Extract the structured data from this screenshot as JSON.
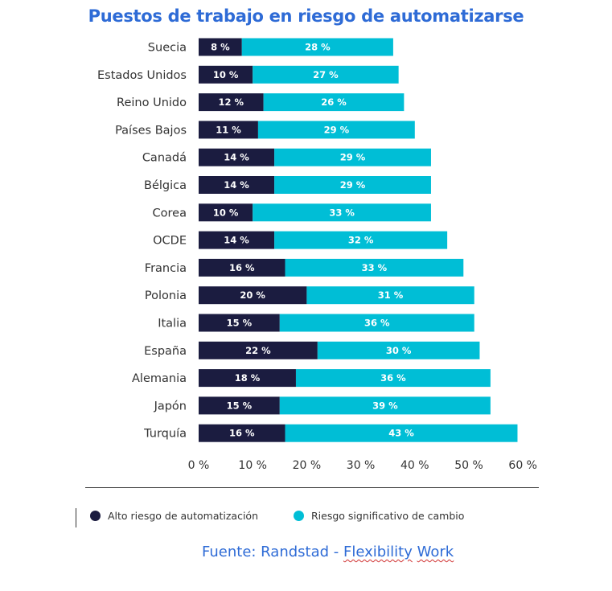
{
  "colors": {
    "title": "#2e6bd6",
    "dark": "#1b1c40",
    "cyan": "#00bed6",
    "source": "#2e6bd6",
    "axis_text": "#333333"
  },
  "legend": {
    "dark_label": "Alto riesgo de automatización",
    "cyan_label": "Riesgo significativo de cambio"
  },
  "source": {
    "prefix": "Fuente: Randstad - ",
    "word1": "Flexibility",
    "word2": "Work"
  },
  "chart_data": {
    "type": "bar",
    "orientation": "horizontal",
    "stacked": true,
    "title": "Puestos de trabajo en riesgo de automatizarse",
    "categories": [
      "Suecia",
      "Estados Unidos",
      "Reino Unido",
      "Países Bajos",
      "Canadá",
      "Bélgica",
      "Corea",
      "OCDE",
      "Francia",
      "Polonia",
      "Italia",
      "España",
      "Alemania",
      "Japón",
      "Turquía"
    ],
    "series": [
      {
        "name": "Alto riesgo de automatización",
        "values": [
          8,
          10,
          12,
          11,
          14,
          14,
          10,
          14,
          16,
          20,
          15,
          22,
          18,
          15,
          16
        ]
      },
      {
        "name": "Riesgo significativo de cambio",
        "values": [
          28,
          27,
          26,
          29,
          29,
          29,
          33,
          32,
          33,
          31,
          36,
          30,
          36,
          39,
          43
        ]
      }
    ],
    "data_labels": {
      "dark": [
        "8 %",
        "10 %",
        "12 %",
        "11 %",
        "14 %",
        "14 %",
        "10 %",
        "14 %",
        "16 %",
        "20 %",
        "15 %",
        "22 %",
        "18 %",
        "15 %",
        "16 %"
      ],
      "cyan": [
        "28 %",
        "27 %",
        "26 %",
        "29 %",
        "29 %",
        "29 %",
        "33 %",
        "32 %",
        "33 %",
        "31 %",
        "36 %",
        "30 %",
        "36 %",
        "39 %",
        "43 %"
      ]
    },
    "x_ticks": [
      0,
      10,
      20,
      30,
      40,
      50,
      60
    ],
    "x_tick_labels": [
      "0 %",
      "10 %",
      "20 %",
      "30 %",
      "40 %",
      "50 %",
      "60 %"
    ],
    "xlim": [
      0,
      64
    ],
    "xlabel": "",
    "ylabel": "",
    "grid": false,
    "legend_position": "bottom"
  }
}
